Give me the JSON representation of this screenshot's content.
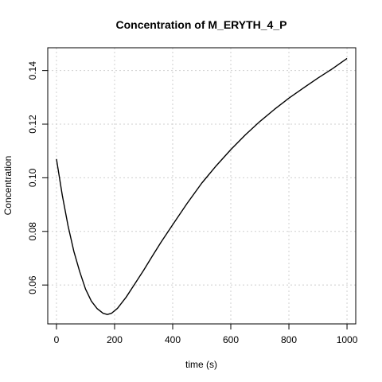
{
  "chart_data": {
    "type": "line",
    "title": "Concentration of M_ERYTH_4_P",
    "xlabel": "time (s)",
    "ylabel": "Concentration",
    "xlim": [
      -30,
      1030
    ],
    "ylim": [
      0.0455,
      0.1485
    ],
    "xticks": [
      0,
      200,
      400,
      600,
      800,
      1000
    ],
    "xtick_labels": [
      "0",
      "200",
      "400",
      "600",
      "800",
      "1000"
    ],
    "yticks": [
      0.06,
      0.08,
      0.1,
      0.12,
      0.14
    ],
    "ytick_labels": [
      "0.06",
      "0.08",
      "0.10",
      "0.12",
      "0.14"
    ],
    "grid": true,
    "legend": "none",
    "series": [
      {
        "color": "#000000",
        "x": [
          0,
          20,
          40,
          60,
          80,
          100,
          120,
          140,
          160,
          175,
          190,
          210,
          240,
          270,
          300,
          330,
          360,
          400,
          450,
          500,
          550,
          600,
          650,
          700,
          750,
          800,
          850,
          900,
          950,
          1000
        ],
        "y": [
          0.107,
          0.0935,
          0.082,
          0.0725,
          0.065,
          0.0585,
          0.054,
          0.0512,
          0.0495,
          0.049,
          0.0495,
          0.0513,
          0.0555,
          0.0605,
          0.0655,
          0.0708,
          0.076,
          0.0825,
          0.0905,
          0.098,
          0.1045,
          0.1105,
          0.116,
          0.121,
          0.1255,
          0.1297,
          0.1335,
          0.1372,
          0.1407,
          0.1445
        ]
      }
    ]
  }
}
